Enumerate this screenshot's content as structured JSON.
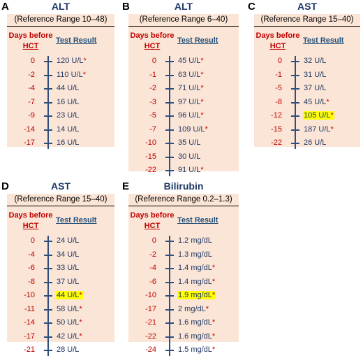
{
  "panels": [
    {
      "letter": "A",
      "title": "ALT",
      "subtitle": "(Reference Range 10–48)",
      "header_days_1": "Days before",
      "header_days_2": "HCT",
      "header_test": "Test Result",
      "rows": [
        {
          "day": "0",
          "value": "120 U/L",
          "star": "*",
          "highlight": false
        },
        {
          "day": "-2",
          "value": "110 U/L",
          "star": "*",
          "highlight": false
        },
        {
          "day": "-4",
          "value": "44 U/L",
          "star": "",
          "highlight": false
        },
        {
          "day": "-7",
          "value": "16 U/L",
          "star": "",
          "highlight": false
        },
        {
          "day": "-9",
          "value": "23 U/L",
          "star": "",
          "highlight": false
        },
        {
          "day": "-14",
          "value": "14 U/L",
          "star": "",
          "highlight": false
        },
        {
          "day": "-17",
          "value": "16 U/L",
          "star": "",
          "highlight": false
        }
      ]
    },
    {
      "letter": "B",
      "title": "ALT",
      "subtitle": "(Reference Range 6–40)",
      "header_days_1": "Days before",
      "header_days_2": "HCT",
      "header_test": "Test Result",
      "rows": [
        {
          "day": "0",
          "value": "45 U/L",
          "star": "*",
          "highlight": false
        },
        {
          "day": "-1",
          "value": "63 U/L",
          "star": "*",
          "highlight": false
        },
        {
          "day": "-2",
          "value": "71 U/L",
          "star": "*",
          "highlight": false
        },
        {
          "day": "-3",
          "value": "97 U/L",
          "star": "*",
          "highlight": false
        },
        {
          "day": "-5",
          "value": "96 U/L",
          "star": "*",
          "highlight": false
        },
        {
          "day": "-7",
          "value": "109 U/L",
          "star": "*",
          "highlight": false
        },
        {
          "day": "-10",
          "value": "35 U/L",
          "star": "",
          "highlight": false
        },
        {
          "day": "-15",
          "value": "30 U/L",
          "star": "",
          "highlight": false
        },
        {
          "day": "-22",
          "value": "91 U/L",
          "star": "*",
          "highlight": false
        }
      ]
    },
    {
      "letter": "C",
      "title": "AST",
      "subtitle": "(Reference Range 15–40)",
      "header_days_1": "Days before",
      "header_days_2": "HCT",
      "header_test": "Test Result",
      "rows": [
        {
          "day": "0",
          "value": "32 U/L",
          "star": "",
          "highlight": false
        },
        {
          "day": "-1",
          "value": "31 U/L",
          "star": "",
          "highlight": false
        },
        {
          "day": "-5",
          "value": "37 U/L",
          "star": "",
          "highlight": false
        },
        {
          "day": "-8",
          "value": "45 U/L",
          "star": "*",
          "highlight": false
        },
        {
          "day": "-12",
          "value": "105 U/L",
          "star": "*",
          "highlight": true
        },
        {
          "day": "-15",
          "value": "187 U/L",
          "star": "*",
          "highlight": false
        },
        {
          "day": "-22",
          "value": "26 U/L",
          "star": "",
          "highlight": false
        }
      ]
    },
    {
      "letter": "D",
      "title": "AST",
      "subtitle": "(Reference Range 15–40)",
      "header_days_1": "Days before",
      "header_days_2": "HCT",
      "header_test": "Test Result",
      "rows": [
        {
          "day": "0",
          "value": "24 U/L",
          "star": "",
          "highlight": false
        },
        {
          "day": "-4",
          "value": "34 U/L",
          "star": "",
          "highlight": false
        },
        {
          "day": "-6",
          "value": "33 U/L",
          "star": "",
          "highlight": false
        },
        {
          "day": "-8",
          "value": "37 U/L",
          "star": "",
          "highlight": false
        },
        {
          "day": "-10",
          "value": "44 U/L",
          "star": "*",
          "highlight": true
        },
        {
          "day": "-11",
          "value": "58 U/L",
          "star": "*",
          "highlight": false
        },
        {
          "day": "-14",
          "value": "50 U/L",
          "star": "*",
          "highlight": false
        },
        {
          "day": "-17",
          "value": "42 U/L",
          "star": "*",
          "highlight": false
        },
        {
          "day": "-21",
          "value": "28 U/L",
          "star": "",
          "highlight": false
        }
      ]
    },
    {
      "letter": "E",
      "title": "Bilirubin",
      "subtitle": "(Reference Range 0.2–1.3)",
      "header_days_1": "Days before",
      "header_days_2": "HCT",
      "header_test": "Test Result",
      "rows": [
        {
          "day": "0",
          "value": "1.2 mg/dL",
          "star": "",
          "highlight": false
        },
        {
          "day": "-2",
          "value": "1.3 mg/dL",
          "star": "",
          "highlight": false
        },
        {
          "day": "-4",
          "value": "1.4 mg/dL",
          "star": "*",
          "highlight": false
        },
        {
          "day": "-6",
          "value": "1.4 mg/dL",
          "star": "*",
          "highlight": false
        },
        {
          "day": "-10",
          "value": "1.9 mg/dL",
          "star": "*",
          "highlight": true
        },
        {
          "day": "-17",
          "value": "2 mg/dL",
          "star": "*",
          "highlight": false
        },
        {
          "day": "-21",
          "value": "1.6 mg/dL",
          "star": "*",
          "highlight": false
        },
        {
          "day": "-22",
          "value": "1.6 mg/dL",
          "star": "*",
          "highlight": false
        },
        {
          "day": "-24",
          "value": "1.5 mg/dL",
          "star": "*",
          "highlight": false
        }
      ]
    }
  ],
  "colors": {
    "panel_bg": "#fbe5d6",
    "title": "#1f3864",
    "days": "#c00000",
    "value": "#203864",
    "axis": "#2e4f7e",
    "highlight": "#ffff00"
  }
}
